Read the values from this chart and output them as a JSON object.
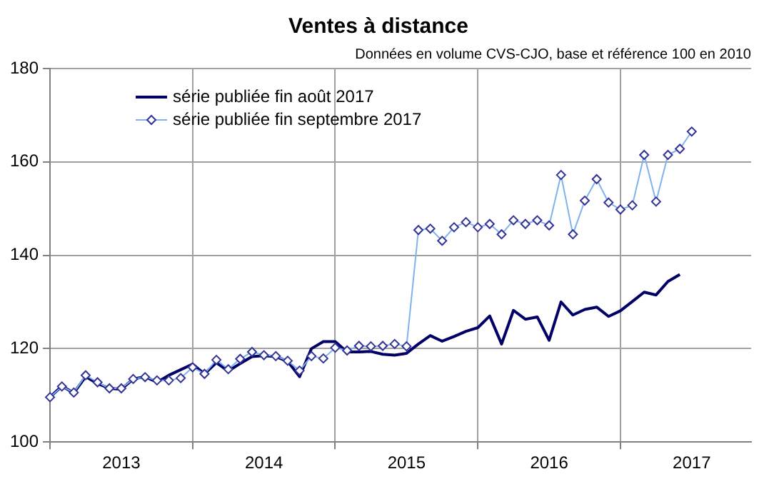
{
  "chart_data": {
    "type": "line",
    "title": "Ventes à distance",
    "subtitle": "Données en volume CVS-CJO, base et référence 100 en 2010",
    "categories": [
      null,
      null,
      null,
      null,
      null,
      null,
      "2013",
      null,
      null,
      null,
      null,
      null,
      null,
      null,
      null,
      null,
      null,
      null,
      "2014",
      null,
      null,
      null,
      null,
      null,
      null,
      null,
      null,
      null,
      null,
      null,
      "2015",
      null,
      null,
      null,
      null,
      null,
      null,
      null,
      null,
      null,
      null,
      null,
      "2016",
      null,
      null,
      null,
      null,
      null,
      null,
      null,
      null,
      null,
      null,
      null,
      "2017",
      null,
      null,
      null,
      null,
      null
    ],
    "ylim": [
      100,
      180
    ],
    "yticks": [
      100,
      120,
      140,
      160,
      180
    ],
    "grid": true,
    "legend": "top left",
    "series": [
      {
        "name": "série publiée fin août 2017",
        "color": "#000066",
        "marker": "none",
        "values": [
          109.6,
          112,
          110.5,
          114,
          112.5,
          111.5,
          111.3,
          113.5,
          114,
          112.8,
          114.3,
          115.5,
          116.7,
          114.6,
          117,
          115.2,
          116.8,
          118.3,
          118.5,
          118.3,
          117.3,
          114,
          120,
          121.5,
          121.5,
          119.3,
          119.3,
          119.4,
          118.8,
          118.6,
          119,
          121,
          122.8,
          121.6,
          122.6,
          123.7,
          124.5,
          127,
          121,
          128.2,
          126.3,
          126.8,
          121.8,
          130,
          127.2,
          128.4,
          128.9,
          126.9,
          128.1,
          130.1,
          132.1,
          131.5,
          134.4,
          135.9,
          null,
          null,
          null,
          null,
          null,
          null
        ]
      },
      {
        "name": "série publiée fin septembre 2017",
        "color": "#7fb2ee",
        "marker": "diamond",
        "values": [
          109.6,
          111.9,
          110.6,
          114.3,
          112.8,
          111.5,
          111.5,
          113.5,
          113.9,
          113.2,
          113.2,
          113.7,
          116,
          114.6,
          117.6,
          115.6,
          117.8,
          119.3,
          118.6,
          118.4,
          117.4,
          115.3,
          118.4,
          117.9,
          120.2,
          119.6,
          120.6,
          120.5,
          120.6,
          121,
          120.5,
          145.4,
          145.7,
          143.1,
          146,
          147.1,
          146,
          146.7,
          144.5,
          147.5,
          146.7,
          147.5,
          146.4,
          157.2,
          144.5,
          151.7,
          156.3,
          151.3,
          149.8,
          150.7,
          161.5,
          151.5,
          161.5,
          162.8,
          166.5,
          null,
          null,
          null,
          null,
          null
        ]
      }
    ]
  }
}
